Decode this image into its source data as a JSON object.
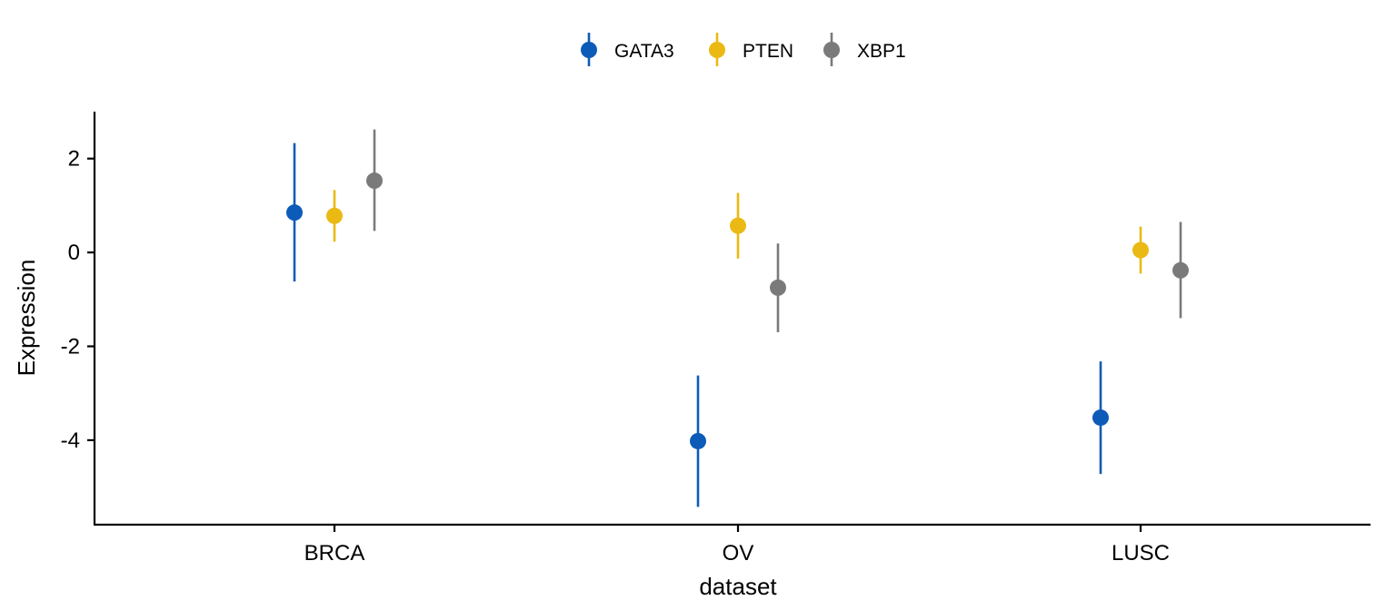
{
  "chart_data": {
    "type": "scatter",
    "subtype": "point-range (dodged points with error bars)",
    "categories": [
      "BRCA",
      "OV",
      "LUSC"
    ],
    "xlabel": "dataset",
    "ylabel": "Expression",
    "ylim": [
      -5.8,
      3.0
    ],
    "yticks": [
      -4,
      -2,
      0,
      2
    ],
    "ytick_labels": [
      "-4",
      "-2",
      "0",
      "2"
    ],
    "grid": false,
    "legend_position": "top",
    "series": [
      {
        "name": "GATA3",
        "color": "#0D5BB8",
        "values": [
          0.85,
          -4.02,
          -3.52
        ],
        "lower": [
          -0.62,
          -5.42,
          -4.72
        ],
        "upper": [
          2.33,
          -2.62,
          -2.32
        ]
      },
      {
        "name": "PTEN",
        "color": "#EBB913",
        "values": [
          0.78,
          0.57,
          0.05
        ],
        "lower": [
          0.23,
          -0.13,
          -0.45
        ],
        "upper": [
          1.33,
          1.27,
          0.55
        ]
      },
      {
        "name": "XBP1",
        "color": "#7A7A7A",
        "values": [
          1.53,
          -0.75,
          -0.38
        ],
        "lower": [
          0.46,
          -1.7,
          -1.4
        ],
        "upper": [
          2.62,
          0.19,
          0.65
        ]
      }
    ]
  }
}
